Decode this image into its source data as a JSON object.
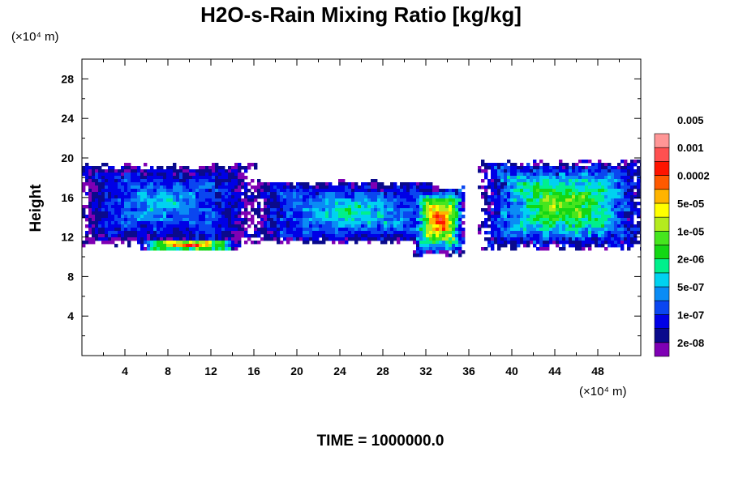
{
  "chart_data": {
    "type": "heatmap",
    "title": "H2O-s-Rain Mixing Ratio [kg/kg]",
    "xlabel": "",
    "ylabel": "Height",
    "x_unit_label": "(×10⁴ m)",
    "y_unit_label": "(×10⁴ m)",
    "xlim": [
      0,
      52
    ],
    "ylim": [
      0,
      30
    ],
    "x_ticks": [
      4,
      8,
      12,
      16,
      20,
      24,
      28,
      32,
      36,
      40,
      44,
      48
    ],
    "y_ticks": [
      4,
      8,
      12,
      16,
      20,
      24,
      28
    ],
    "footer": "TIME = 1000000.0",
    "colorbar": {
      "colors": [
        "#7f00b4",
        "#0a0a8c",
        "#0000e6",
        "#0a46f0",
        "#0a8cf5",
        "#00d2f0",
        "#00f08c",
        "#14d714",
        "#46e61e",
        "#b4eb1e",
        "#ffff00",
        "#ffb400",
        "#ff5a00",
        "#ff1400",
        "#ff5050",
        "#ff9696"
      ],
      "labels": [
        "2e-08",
        "1e-07",
        "5e-07",
        "2e-06",
        "1e-05",
        "5e-05",
        "0.0002",
        "0.001",
        "0.005"
      ]
    },
    "regions": [
      {
        "name": "left-main",
        "x": [
          0,
          15.5
        ],
        "y": [
          11.5,
          19.2
        ],
        "peak": 5
      },
      {
        "name": "left-lower-band",
        "x": [
          5.5,
          14.5
        ],
        "y": [
          10.6,
          11.8
        ],
        "peak": 14
      },
      {
        "name": "center-cells",
        "x": [
          16,
          34
        ],
        "y": [
          11.5,
          17.5
        ],
        "peak": 6
      },
      {
        "name": "central-core",
        "x": [
          31,
          35.5
        ],
        "y": [
          10.3,
          17
        ],
        "peak": 14
      },
      {
        "name": "right-main",
        "x": [
          37.5,
          52
        ],
        "y": [
          11,
          19.5
        ],
        "peak": 9
      }
    ]
  }
}
